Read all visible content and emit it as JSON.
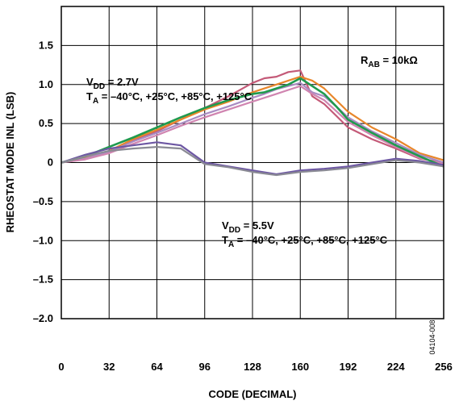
{
  "chart_data": {
    "type": "line",
    "xlabel": "CODE (DECIMAL)",
    "ylabel": "RHEOSTAT MODE INL (LSB)",
    "xlim": [
      0,
      256
    ],
    "ylim": [
      -2.0,
      2.0
    ],
    "xticks": [
      0,
      32,
      64,
      96,
      128,
      160,
      192,
      224,
      256
    ],
    "xtick_labels": [
      "0",
      "32",
      "64",
      "96",
      "128",
      "160",
      "192",
      "224",
      "256"
    ],
    "yticks": [
      1.5,
      1.0,
      0.5,
      0,
      -0.5,
      -1.0,
      -1.5,
      -2.0
    ],
    "ytick_labels": [
      "1.5",
      "1.0",
      "0.5",
      "0",
      "–0.5",
      "–1.0",
      "–1.5",
      "–2.0"
    ],
    "grid": true,
    "annotations": {
      "rab": {
        "main": "R",
        "sub": "AB",
        "rest": " = 10kΩ"
      },
      "vdd27_line1": {
        "main": "V",
        "sub": "DD",
        "rest": " = 2.7V"
      },
      "vdd27_line2": {
        "main": "T",
        "sub": "A",
        "rest": " = –40°C, +25°C, +85°C, +125°C"
      },
      "vdd55_line1": {
        "main": "V",
        "sub": "DD",
        "rest": " = 5.5V"
      },
      "vdd55_line2": {
        "main": "T",
        "sub": "A",
        "rest": " = –40°C, +25°C, +85°C, +125°C"
      }
    },
    "figure_code": "04104-008",
    "colors": {
      "green": "#1f9a4e",
      "orange": "#e8862a",
      "lavender": "#a98bc2",
      "rose": "#c45a78",
      "pink": "#d084b0",
      "purple": "#6d57a3",
      "gray": "#8a8a94"
    },
    "series": [
      {
        "color": "#c45a78",
        "x": [
          0,
          16,
          32,
          48,
          64,
          80,
          96,
          112,
          128,
          136,
          144,
          152,
          160,
          168,
          176,
          184,
          192,
          208,
          224,
          240,
          256
        ],
        "y": [
          0,
          0.05,
          0.15,
          0.28,
          0.4,
          0.55,
          0.7,
          0.85,
          1.02,
          1.08,
          1.1,
          1.16,
          1.18,
          0.85,
          0.75,
          0.6,
          0.45,
          0.3,
          0.18,
          0.05,
          0
        ]
      },
      {
        "color": "#e8862a",
        "x": [
          0,
          16,
          32,
          48,
          64,
          80,
          96,
          112,
          128,
          136,
          144,
          152,
          160,
          168,
          176,
          184,
          192,
          208,
          224,
          240,
          256
        ],
        "y": [
          0,
          0.06,
          0.15,
          0.3,
          0.42,
          0.55,
          0.68,
          0.78,
          0.9,
          0.95,
          1.0,
          1.05,
          1.1,
          1.05,
          0.95,
          0.8,
          0.65,
          0.45,
          0.3,
          0.12,
          0.03
        ]
      },
      {
        "color": "#a98bc2",
        "x": [
          0,
          16,
          32,
          48,
          64,
          80,
          96,
          112,
          128,
          136,
          144,
          152,
          160,
          168,
          176,
          184,
          192,
          208,
          224,
          240,
          256
        ],
        "y": [
          0,
          0.05,
          0.14,
          0.27,
          0.38,
          0.5,
          0.62,
          0.72,
          0.83,
          0.88,
          0.94,
          0.98,
          1.02,
          0.9,
          0.85,
          0.72,
          0.58,
          0.4,
          0.25,
          0.1,
          0.0
        ]
      },
      {
        "color": "#d084b0",
        "x": [
          0,
          16,
          32,
          48,
          64,
          80,
          96,
          112,
          128,
          136,
          144,
          152,
          160,
          168,
          176,
          184,
          192,
          208,
          224,
          240,
          256
        ],
        "y": [
          0,
          0.04,
          0.12,
          0.24,
          0.35,
          0.47,
          0.58,
          0.68,
          0.78,
          0.83,
          0.88,
          0.93,
          0.98,
          0.88,
          0.8,
          0.66,
          0.52,
          0.35,
          0.2,
          0.06,
          -0.02
        ]
      },
      {
        "color": "#1f9a4e",
        "x": [
          0,
          16,
          32,
          48,
          64,
          80,
          96,
          112,
          128,
          136,
          144,
          152,
          160,
          168,
          176,
          184,
          192,
          208,
          224,
          240,
          256
        ],
        "y": [
          0,
          0.08,
          0.2,
          0.32,
          0.45,
          0.58,
          0.7,
          0.8,
          0.88,
          0.9,
          0.95,
          1.0,
          1.08,
          0.98,
          0.88,
          0.72,
          0.55,
          0.38,
          0.22,
          0.08,
          -0.05
        ]
      },
      {
        "color": "#6d57a3",
        "x": [
          0,
          16,
          32,
          48,
          64,
          80,
          96,
          112,
          128,
          144,
          160,
          176,
          192,
          208,
          224,
          240,
          256
        ],
        "y": [
          0,
          0.1,
          0.18,
          0.22,
          0.26,
          0.22,
          0.0,
          -0.05,
          -0.1,
          -0.15,
          -0.1,
          -0.08,
          -0.05,
          0.0,
          0.05,
          0.02,
          -0.03
        ]
      },
      {
        "color": "#8a8a94",
        "x": [
          0,
          16,
          32,
          48,
          64,
          80,
          96,
          112,
          128,
          144,
          160,
          176,
          192,
          208,
          224,
          240,
          256
        ],
        "y": [
          0,
          0.08,
          0.15,
          0.18,
          0.2,
          0.18,
          -0.02,
          -0.06,
          -0.12,
          -0.16,
          -0.12,
          -0.1,
          -0.07,
          -0.02,
          0.03,
          0.0,
          -0.05
        ]
      }
    ]
  }
}
